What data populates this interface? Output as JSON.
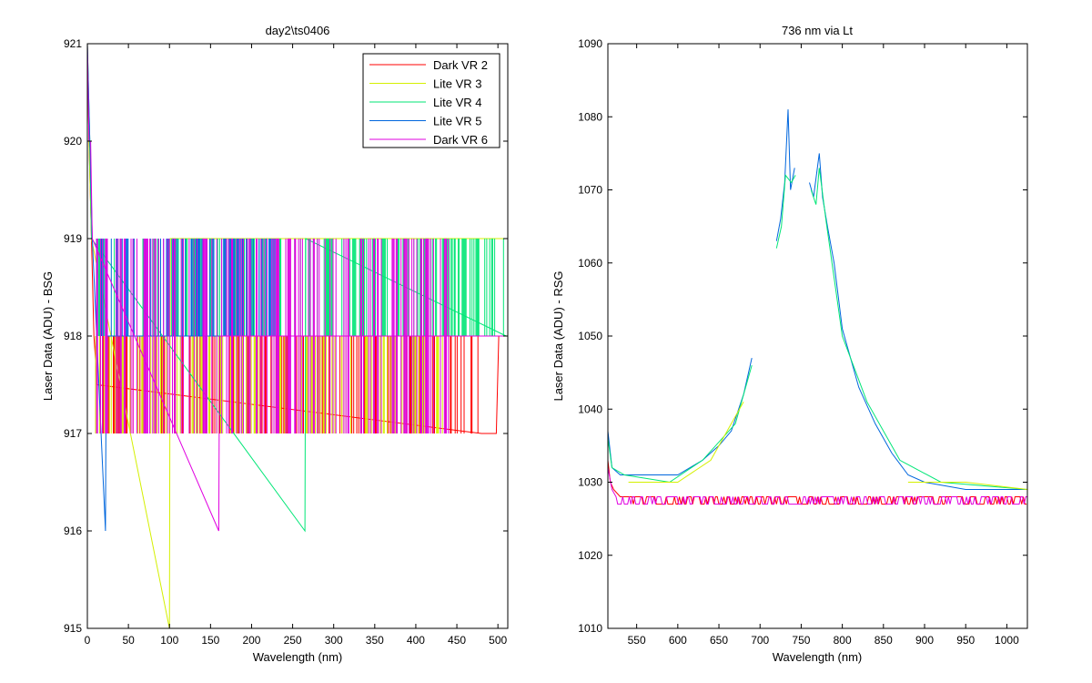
{
  "chart_data": [
    {
      "type": "line",
      "title": "day2\\ts0406",
      "xlabel": "Wavelength (nm)",
      "ylabel": "Laser Data (ADU) - BSG",
      "xlim": [
        0,
        512
      ],
      "ylim": [
        915,
        921
      ],
      "xticks": [
        0,
        50,
        100,
        150,
        200,
        250,
        300,
        350,
        400,
        450,
        500
      ],
      "yticks": [
        915,
        916,
        917,
        918,
        919,
        920,
        921
      ],
      "legend_position": "top-right",
      "series": [
        {
          "name": "Dark VR 2",
          "color": "#ff0000",
          "baseline": 918,
          "levels": [
            917,
            918
          ],
          "flip_end": 480,
          "points": [
            [
              0,
              921
            ],
            [
              2,
              920
            ],
            [
              5,
              919
            ],
            [
              8,
              918
            ],
            [
              12,
              917.5
            ],
            [
              480,
              917
            ],
            [
              498,
              917
            ],
            [
              501,
              918
            ],
            [
              510,
              918
            ]
          ]
        },
        {
          "name": "Lite VR 3",
          "color": "#d4f000",
          "baseline": 919,
          "levels": [
            917,
            918
          ],
          "flip_end": 440,
          "points": [
            [
              0,
              921
            ],
            [
              2,
              920
            ],
            [
              5,
              919
            ],
            [
              100,
              915
            ],
            [
              101,
              919
            ],
            [
              510,
              919
            ]
          ]
        },
        {
          "name": "Lite VR 4",
          "color": "#00e676",
          "baseline": 919,
          "levels": [
            918,
            919
          ],
          "flip_end": 510,
          "points": [
            [
              0,
              921
            ],
            [
              3,
              920
            ],
            [
              5,
              919
            ],
            [
              265,
              916
            ],
            [
              266,
              919
            ],
            [
              510,
              918
            ]
          ]
        },
        {
          "name": "Lite VR 5",
          "color": "#0066dd",
          "baseline": 918,
          "levels": [
            918,
            919
          ],
          "flip_end": 230,
          "points": [
            [
              0,
              921
            ],
            [
              3,
              920
            ],
            [
              6,
              919
            ],
            [
              22,
              916
            ],
            [
              23,
              918
            ],
            [
              510,
              918
            ]
          ]
        },
        {
          "name": "Dark VR 6",
          "color": "#e000e0",
          "baseline": 918,
          "levels": [
            917,
            919
          ],
          "flip_end": 440,
          "points": [
            [
              0,
              921
            ],
            [
              2,
              920
            ],
            [
              4,
              920
            ],
            [
              6,
              919
            ],
            [
              160,
              916
            ],
            [
              161,
              918
            ],
            [
              510,
              918
            ]
          ]
        }
      ]
    },
    {
      "type": "line",
      "title": "736 nm via Lt",
      "xlabel": "Wavelength (nm)",
      "ylabel": "Laser Data (ADU) - RSG",
      "xlim": [
        515,
        1025
      ],
      "ylim": [
        1010,
        1090
      ],
      "xticks": [
        550,
        600,
        650,
        700,
        750,
        800,
        850,
        900,
        950,
        1000
      ],
      "yticks": [
        1010,
        1020,
        1030,
        1040,
        1050,
        1060,
        1070,
        1080,
        1090
      ],
      "series": [
        {
          "color": "#0066dd",
          "segments": [
            [
              [
                515,
                1037
              ],
              [
                520,
                1032
              ],
              [
                530,
                1031
              ],
              [
                550,
                1031
              ],
              [
                600,
                1031
              ],
              [
                630,
                1033
              ],
              [
                650,
                1035
              ],
              [
                665,
                1037
              ],
              [
                680,
                1042
              ],
              [
                690,
                1047
              ]
            ],
            [
              [
                720,
                1063
              ],
              [
                725,
                1066
              ],
              [
                730,
                1071
              ],
              [
                734,
                1081
              ],
              [
                737,
                1070
              ],
              [
                742,
                1073
              ]
            ],
            [
              [
                760,
                1071
              ],
              [
                765,
                1069
              ],
              [
                772,
                1075
              ],
              [
                776,
                1069
              ],
              [
                782,
                1065
              ],
              [
                790,
                1060
              ],
              [
                800,
                1051
              ],
              [
                820,
                1043
              ],
              [
                840,
                1038
              ],
              [
                860,
                1034
              ],
              [
                880,
                1031
              ],
              [
                900,
                1030
              ],
              [
                950,
                1029
              ],
              [
                1000,
                1029
              ],
              [
                1025,
                1029
              ]
            ]
          ]
        },
        {
          "color": "#00e676",
          "segments": [
            [
              [
                515,
                1036
              ],
              [
                520,
                1032
              ],
              [
                535,
                1031
              ],
              [
                590,
                1030
              ],
              [
                630,
                1033
              ],
              [
                670,
                1038
              ],
              [
                690,
                1046
              ]
            ],
            [
              [
                720,
                1062
              ],
              [
                726,
                1065
              ],
              [
                731,
                1072
              ],
              [
                738,
                1071
              ],
              [
                743,
                1072
              ]
            ],
            [
              [
                762,
                1070
              ],
              [
                768,
                1068
              ],
              [
                772,
                1073
              ],
              [
                780,
                1066
              ],
              [
                800,
                1050
              ],
              [
                830,
                1041
              ],
              [
                870,
                1033
              ],
              [
                920,
                1030
              ],
              [
                1025,
                1029
              ]
            ]
          ]
        },
        {
          "color": "#d4f000",
          "segments": [
            [
              [
                540,
                1030
              ],
              [
                600,
                1030
              ],
              [
                640,
                1033
              ],
              [
                680,
                1041
              ]
            ],
            [
              [
                880,
                1030
              ],
              [
                950,
                1030
              ],
              [
                1025,
                1029
              ]
            ]
          ]
        },
        {
          "color": "#ff0000",
          "noise": [
            1027,
            1028
          ],
          "points": [
            [
              515,
              1033
            ],
            [
              518,
              1030
            ],
            [
              522,
              1029
            ],
            [
              530,
              1028
            ],
            [
              1025,
              1028
            ]
          ]
        },
        {
          "color": "#e000e0",
          "noise": [
            1027,
            1028
          ],
          "points": [
            [
              515,
              1032
            ],
            [
              520,
              1029
            ],
            [
              525,
              1028
            ],
            [
              1025,
              1028
            ]
          ]
        }
      ]
    }
  ]
}
